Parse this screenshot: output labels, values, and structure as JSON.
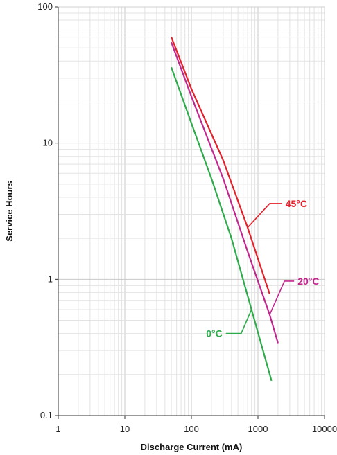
{
  "chart_data": {
    "type": "line",
    "title": "",
    "xlabel": "Discharge Current (mA)",
    "ylabel": "Service Hours",
    "xscale": "log",
    "yscale": "log",
    "xlim": [
      1,
      10000
    ],
    "ylim": [
      0.1,
      100
    ],
    "x_ticks": [
      "1",
      "10",
      "100",
      "1000",
      "10000"
    ],
    "y_ticks": [
      "0.1",
      "1",
      "10",
      "100"
    ],
    "grid": true,
    "legend": "inline labels with leader lines",
    "series": [
      {
        "name": "45°C",
        "color": "#e4202a",
        "points": [
          [
            50,
            60
          ],
          [
            100,
            25
          ],
          [
            300,
            7.5
          ],
          [
            700,
            2.4
          ],
          [
            1500,
            0.78
          ]
        ]
      },
      {
        "name": "20°C",
        "color": "#c2268e",
        "points": [
          [
            50,
            55
          ],
          [
            100,
            22
          ],
          [
            300,
            5.5
          ],
          [
            700,
            1.6
          ],
          [
            1500,
            0.55
          ],
          [
            2000,
            0.34
          ]
        ]
      },
      {
        "name": "0°C",
        "color": "#2daa4a",
        "points": [
          [
            50,
            36
          ],
          [
            100,
            14
          ],
          [
            200,
            5.5
          ],
          [
            400,
            2.0
          ],
          [
            800,
            0.6
          ],
          [
            1600,
            0.18
          ]
        ]
      }
    ],
    "annotations": [
      {
        "text": "45°C",
        "series": 0,
        "anchor": [
          700,
          2.4
        ],
        "elbow": [
          1500,
          3.6
        ],
        "end": [
          2300,
          3.6
        ]
      },
      {
        "text": "20°C",
        "series": 1,
        "anchor": [
          1500,
          0.55
        ],
        "elbow": [
          2500,
          0.97
        ],
        "end": [
          3500,
          0.97
        ]
      },
      {
        "text": "0°C",
        "series": 2,
        "anchor": [
          800,
          0.6
        ],
        "elbow": [
          560,
          0.4
        ],
        "end": [
          330,
          0.4
        ]
      }
    ]
  }
}
